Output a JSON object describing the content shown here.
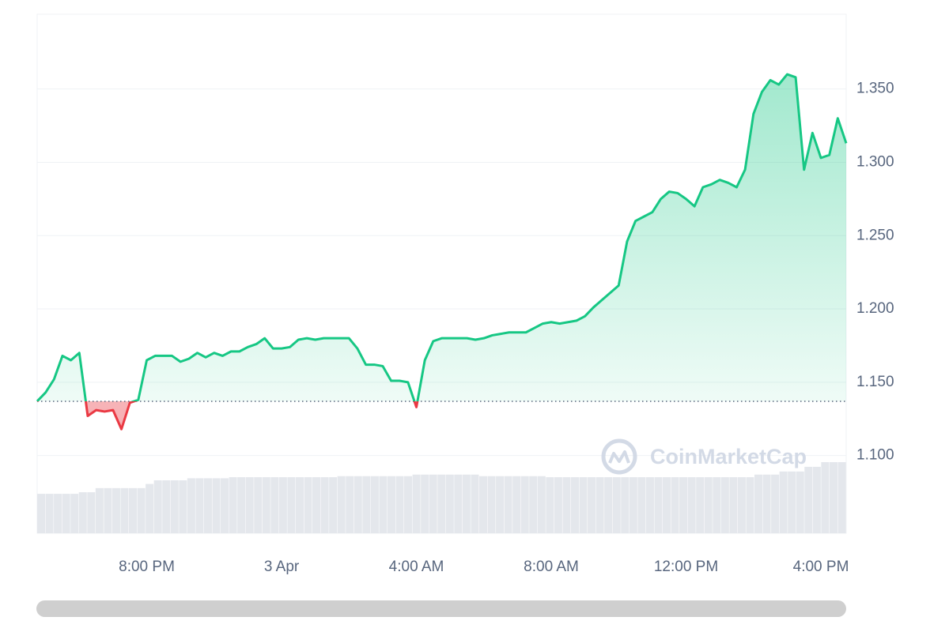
{
  "chart_data": {
    "type": "line",
    "categories": [
      null,
      null,
      null,
      null,
      null,
      null,
      null,
      null,
      null,
      null,
      null,
      null,
      null,
      "8:00 PM",
      null,
      null,
      null,
      null,
      null,
      null,
      null,
      null,
      null,
      null,
      null,
      null,
      null,
      null,
      null,
      "3 Apr",
      null,
      null,
      null,
      null,
      null,
      null,
      null,
      null,
      null,
      null,
      null,
      null,
      null,
      null,
      null,
      "4:00 AM",
      null,
      null,
      null,
      null,
      null,
      null,
      null,
      null,
      null,
      null,
      null,
      null,
      null,
      null,
      null,
      "8:00 AM",
      null,
      null,
      null,
      null,
      null,
      null,
      null,
      null,
      null,
      null,
      null,
      null,
      null,
      null,
      null,
      "12:00 PM",
      null,
      null,
      null,
      null,
      null,
      null,
      null,
      null,
      null,
      null,
      null,
      null,
      null,
      null,
      null,
      "4:00 PM",
      null,
      null,
      null
    ],
    "values": [
      1.137,
      1.143,
      1.152,
      1.168,
      1.165,
      1.17,
      1.127,
      1.131,
      1.13,
      1.131,
      1.118,
      1.136,
      1.138,
      1.165,
      1.168,
      1.168,
      1.168,
      1.164,
      1.166,
      1.17,
      1.167,
      1.17,
      1.168,
      1.171,
      1.171,
      1.174,
      1.176,
      1.18,
      1.173,
      1.173,
      1.174,
      1.179,
      1.18,
      1.179,
      1.18,
      1.18,
      1.18,
      1.18,
      1.173,
      1.162,
      1.162,
      1.161,
      1.151,
      1.151,
      1.15,
      1.133,
      1.165,
      1.178,
      1.18,
      1.18,
      1.18,
      1.18,
      1.179,
      1.18,
      1.182,
      1.183,
      1.184,
      1.184,
      1.184,
      1.187,
      1.19,
      1.191,
      1.19,
      1.191,
      1.192,
      1.195,
      1.201,
      1.206,
      1.211,
      1.216,
      1.246,
      1.26,
      1.263,
      1.266,
      1.275,
      1.28,
      1.279,
      1.275,
      1.27,
      1.283,
      1.285,
      1.288,
      1.286,
      1.283,
      1.295,
      1.333,
      1.348,
      1.356,
      1.353,
      1.36,
      1.358,
      1.295,
      1.32,
      1.303,
      1.305,
      1.33,
      1.313
    ],
    "volume": [
      7.6,
      7.6,
      7.6,
      7.6,
      7.6,
      7.9,
      7.9,
      8.7,
      8.7,
      8.7,
      8.7,
      8.7,
      8.7,
      9.5,
      10.2,
      10.2,
      10.2,
      10.2,
      10.6,
      10.6,
      10.6,
      10.6,
      10.6,
      10.8,
      10.8,
      10.8,
      10.8,
      10.8,
      10.8,
      10.8,
      10.8,
      10.8,
      10.8,
      10.8,
      10.8,
      10.8,
      11.0,
      11.0,
      11.0,
      11.0,
      11.0,
      11.0,
      11.0,
      11.0,
      11.0,
      11.3,
      11.3,
      11.3,
      11.3,
      11.3,
      11.3,
      11.3,
      11.3,
      11.0,
      11.0,
      11.0,
      11.0,
      11.0,
      11.0,
      11.0,
      11.0,
      10.8,
      10.8,
      10.8,
      10.8,
      10.8,
      10.8,
      10.8,
      10.8,
      10.8,
      10.8,
      10.8,
      10.8,
      10.8,
      10.8,
      10.8,
      10.8,
      10.8,
      10.8,
      10.8,
      10.8,
      10.8,
      10.8,
      10.8,
      10.8,
      10.8,
      11.3,
      11.3,
      11.3,
      11.9,
      11.9,
      11.9,
      12.8,
      12.8,
      13.7,
      13.7,
      13.7
    ],
    "volume_lim": [
      0,
      100
    ],
    "volume_color": "#e4e7ec",
    "color": "#16c784",
    "negative_color": "#ea3943",
    "reference_value": 1.137,
    "ylim": [
      1.047,
      1.401
    ],
    "yticks": [
      {
        "value": 1.1,
        "label": "1.100"
      },
      {
        "value": 1.15,
        "label": "1.150"
      },
      {
        "value": 1.2,
        "label": "1.200"
      },
      {
        "value": 1.25,
        "label": "1.250"
      },
      {
        "value": 1.3,
        "label": "1.300"
      },
      {
        "value": 1.35,
        "label": "1.350"
      }
    ],
    "grid": true,
    "watermark": "CoinMarketCap"
  }
}
